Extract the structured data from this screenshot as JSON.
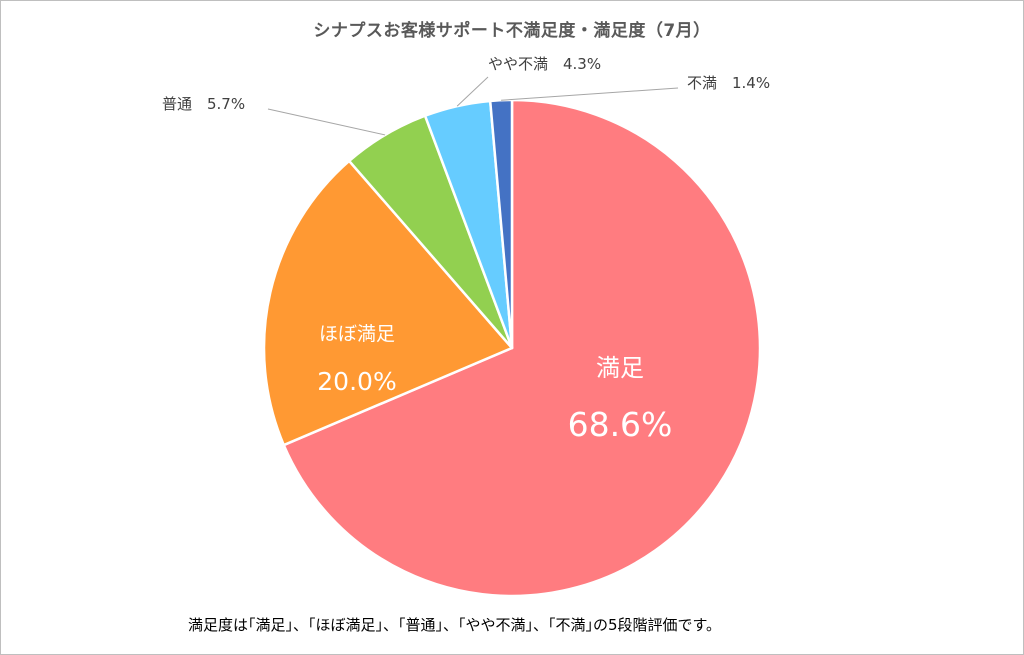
{
  "chart_data": {
    "type": "pie",
    "title": "シナプスお客様サポート不満足度・満足度（7月）",
    "slices": [
      {
        "label": "満足",
        "value": 68.6,
        "display": "68.6%",
        "color": "#FF7C80"
      },
      {
        "label": "ほぼ満足",
        "value": 20.0,
        "display": "20.0%",
        "color": "#FF9933"
      },
      {
        "label": "普通",
        "value": 5.7,
        "display": "5.7%",
        "color": "#92D050"
      },
      {
        "label": "やや不満",
        "value": 4.3,
        "display": "4.3%",
        "color": "#66CCFF"
      },
      {
        "label": "不満",
        "value": 1.4,
        "display": "1.4%",
        "color": "#4472C4"
      }
    ],
    "start": "12 o'clock",
    "direction": "clockwise",
    "legend": "none"
  },
  "footnote": "満足度は｢満足｣、｢ほぼ満足｣、｢普通｣、｢やや不満｣、｢不満｣の5段階評価です。"
}
